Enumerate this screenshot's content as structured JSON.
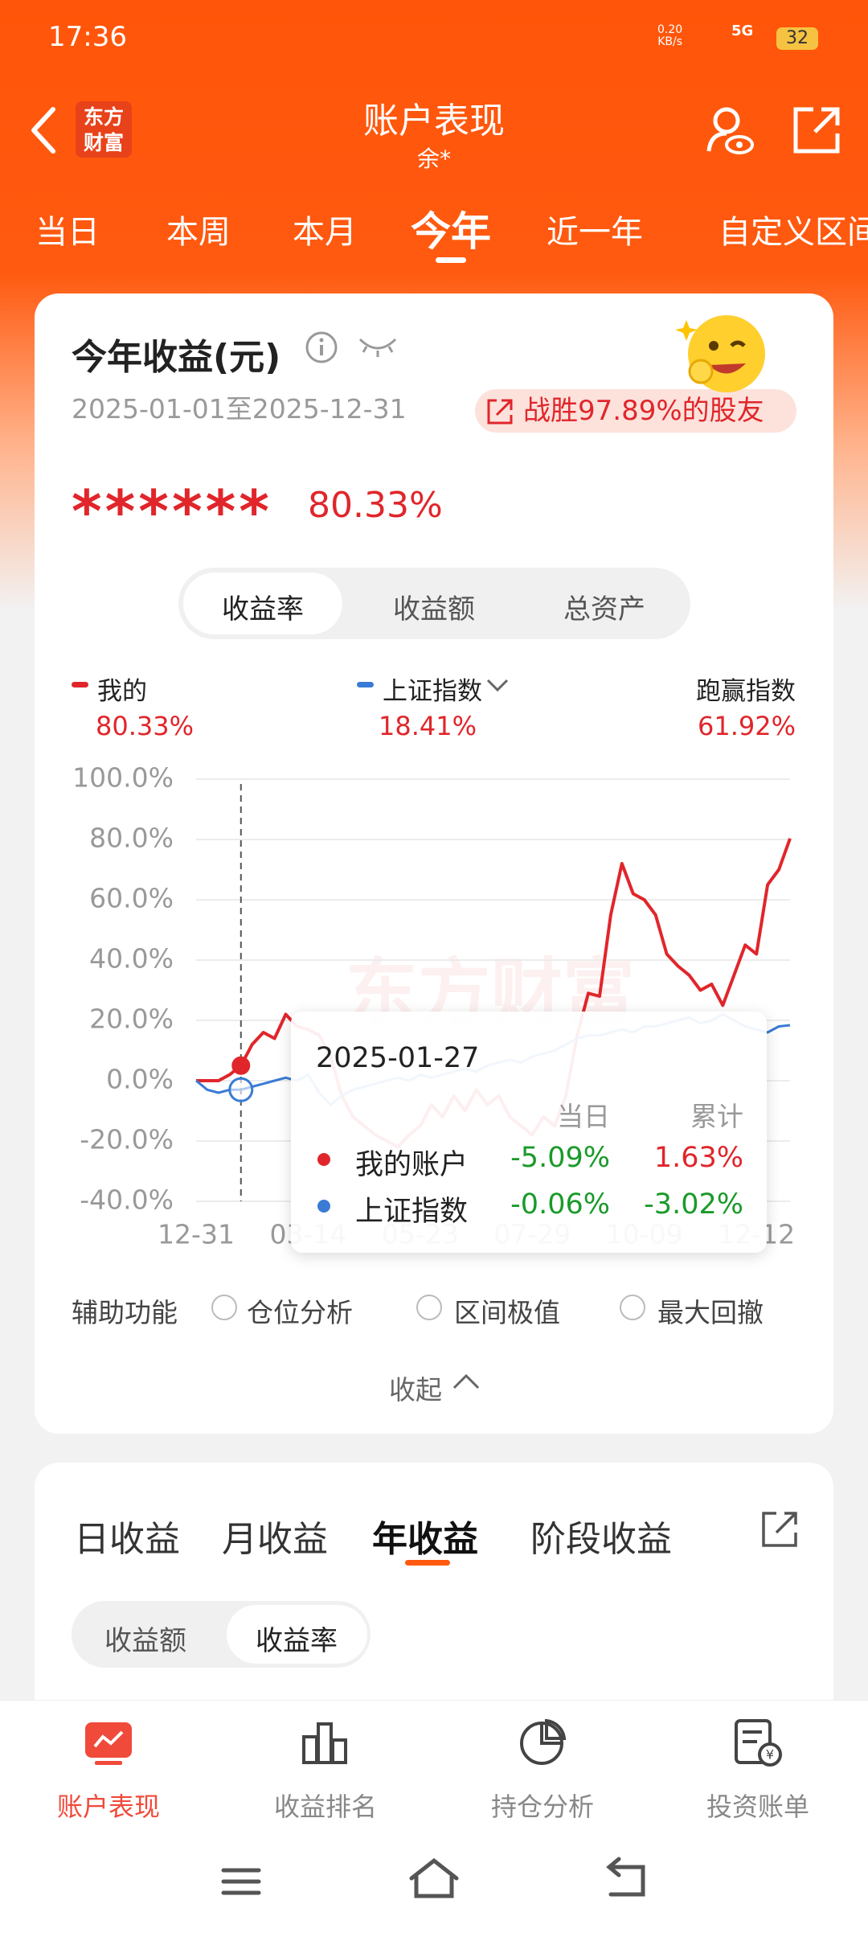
{
  "status_bar": {
    "time": "17:36",
    "speed": "0.20\nKB/s",
    "network": "5G",
    "battery": "32"
  },
  "header": {
    "logo": "东方\n财富",
    "title": "账户表现",
    "subtitle": "余*"
  },
  "tabs": [
    "当日",
    "本周",
    "本月",
    "今年",
    "近一年",
    "自定义区间"
  ],
  "summary": {
    "title": "今年收益(元)",
    "date_range": "2025-01-01至2025-12-31",
    "badge": "战胜97.89%的股友",
    "masked_amount": "******",
    "rate": "80.33%"
  },
  "segments": [
    "收益率",
    "收益额",
    "总资产"
  ],
  "legend": [
    {
      "name": "我的",
      "value": "80.33%"
    },
    {
      "name": "上证指数",
      "value": "18.41%"
    },
    {
      "name": "跑赢指数",
      "value": "61.92%"
    }
  ],
  "chart_data": {
    "type": "line",
    "watermark": "东方财富",
    "categories": [
      "12-31",
      null,
      null,
      null,
      null,
      null,
      null,
      null,
      null,
      null,
      "03-14",
      null,
      null,
      null,
      null,
      null,
      null,
      null,
      null,
      null,
      "05-23",
      null,
      null,
      null,
      null,
      null,
      null,
      null,
      null,
      null,
      "07-29",
      null,
      null,
      null,
      null,
      null,
      null,
      null,
      null,
      null,
      "10-09",
      null,
      null,
      null,
      null,
      null,
      null,
      null,
      null,
      null,
      "12-12",
      null,
      null,
      null
    ],
    "series": [
      {
        "name": "我的",
        "color": "#e0262b",
        "values": [
          0,
          0,
          0,
          2,
          5,
          12,
          16,
          14,
          22,
          18,
          17,
          15,
          8,
          -5,
          -12,
          -15,
          -18,
          -20,
          -22,
          -18,
          -15,
          -8,
          -12,
          -5,
          -10,
          -3,
          -8,
          -5,
          -12,
          -15,
          -18,
          -12,
          -15,
          -5,
          15,
          29,
          28,
          55,
          72,
          62,
          60,
          55,
          42,
          38,
          35,
          30,
          32,
          25,
          35,
          45,
          42,
          65,
          70,
          80.33
        ]
      },
      {
        "name": "上证指数",
        "color": "#3a7bd5",
        "values": [
          0,
          -3,
          -4,
          -3,
          -3,
          -2,
          -1,
          0,
          1,
          0,
          2,
          -4,
          -8,
          -5,
          -3,
          -2,
          -1,
          0,
          1,
          0,
          2,
          1,
          2,
          3,
          4,
          3,
          5,
          6,
          7,
          6,
          8,
          9,
          10,
          12,
          14,
          15,
          15,
          16,
          17,
          16,
          18,
          18,
          19,
          20,
          21,
          19,
          20,
          22,
          20,
          18,
          17,
          16,
          18,
          18.41
        ]
      }
    ],
    "ylim": [
      -40,
      100
    ],
    "yticks": [
      {
        "value": -40,
        "label": "-40.0%"
      },
      {
        "value": -20,
        "label": "-20.0%"
      },
      {
        "value": 0,
        "label": "0.0%"
      },
      {
        "value": 20,
        "label": "20.0%"
      },
      {
        "value": 40,
        "label": "40.0%"
      },
      {
        "value": 60,
        "label": "60.0%"
      },
      {
        "value": 80,
        "label": "80.0%"
      },
      {
        "value": 100,
        "label": "100.0%"
      }
    ],
    "grid": true,
    "tooltip": {
      "date": "2025-01-27",
      "headers": [
        "当日",
        "累计"
      ],
      "rows": [
        {
          "name": "我的账户",
          "day": "-5.09%",
          "total": "1.63%"
        },
        {
          "name": "上证指数",
          "day": "-0.06%",
          "total": "-3.02%"
        }
      ]
    }
  },
  "aux": {
    "label": "辅助功能",
    "options": [
      "仓位分析",
      "区间极值",
      "最大回撤"
    ],
    "collapse": "收起"
  },
  "income_tabs": [
    "日收益",
    "月收益",
    "年收益",
    "阶段收益"
  ],
  "income_segments": [
    "收益额",
    "收益率"
  ],
  "bottom_nav": [
    "账户表现",
    "收益排名",
    "持仓分析",
    "投资账单"
  ]
}
